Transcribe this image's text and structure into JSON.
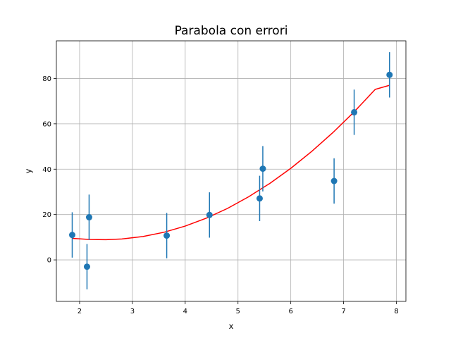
{
  "chart_data": {
    "type": "scatter",
    "title": "Parabola con errori",
    "xlabel": "x",
    "ylabel": "y",
    "xlim": [
      1.56,
      8.18
    ],
    "ylim": [
      -18.3,
      96.6
    ],
    "xticks": [
      2,
      3,
      4,
      5,
      6,
      7,
      8
    ],
    "yticks": [
      0,
      20,
      40,
      60,
      80
    ],
    "grid": true,
    "colors": {
      "points": "#1f77b4",
      "fit": "#ff0000",
      "grid": "#b0b0b0"
    },
    "points": [
      {
        "x": 1.86,
        "y": 11.0,
        "err": 10
      },
      {
        "x": 2.14,
        "y": -3.0,
        "err": 10
      },
      {
        "x": 2.18,
        "y": 18.8,
        "err": 10
      },
      {
        "x": 3.65,
        "y": 10.7,
        "err": 10
      },
      {
        "x": 4.46,
        "y": 19.8,
        "err": 10
      },
      {
        "x": 5.41,
        "y": 27.1,
        "err": 10
      },
      {
        "x": 5.47,
        "y": 40.2,
        "err": 10
      },
      {
        "x": 6.82,
        "y": 34.8,
        "err": 10
      },
      {
        "x": 7.2,
        "y": 65.1,
        "err": 10
      },
      {
        "x": 7.87,
        "y": 81.6,
        "err": 10
      }
    ],
    "fit": {
      "x": [
        1.86,
        2.2,
        2.5,
        2.8,
        3.2,
        3.6,
        4.0,
        4.4,
        4.8,
        5.2,
        5.6,
        6.0,
        6.4,
        6.8,
        7.2,
        7.6,
        7.87
      ],
      "y": [
        9.5,
        9.0,
        8.9,
        9.2,
        10.3,
        12.2,
        14.9,
        18.4,
        22.7,
        27.8,
        33.7,
        40.4,
        47.9,
        56.2,
        65.3,
        75.2,
        77.0
      ]
    }
  }
}
